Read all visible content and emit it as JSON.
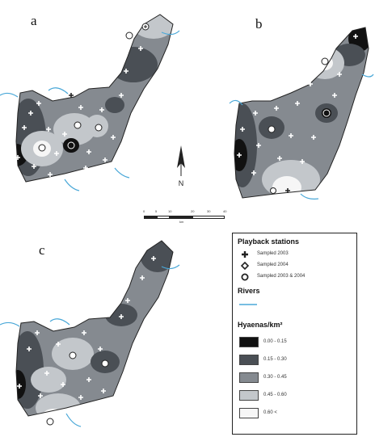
{
  "panels": [
    {
      "letter": "a"
    },
    {
      "letter": "b"
    },
    {
      "letter": "c"
    }
  ],
  "legend": {
    "stations_title": "Playback stations",
    "stations": [
      {
        "symbol": "plus",
        "label": "Sampled 2003"
      },
      {
        "symbol": "diamond",
        "label": "Sampled 2004"
      },
      {
        "symbol": "circle",
        "label": "Sampled 2003 & 2004"
      }
    ],
    "rivers_title": "Rivers",
    "density_title": "Hyaenas/km²",
    "classes": [
      {
        "label": "0.00 - 0.15",
        "color": "#111111"
      },
      {
        "label": "0.15 - 0.30",
        "color": "#4a4f55"
      },
      {
        "label": "0.30 - 0.45",
        "color": "#858a90"
      },
      {
        "label": "0.45 - 0.60",
        "color": "#c3c7cb"
      },
      {
        "label": "0.60 <",
        "color": "#f6f6f6"
      }
    ]
  },
  "scale": {
    "ticks": [
      "0",
      "5",
      "10",
      "20",
      "30",
      "40"
    ],
    "unit": "km"
  },
  "north": {
    "label": "N"
  },
  "colors": {
    "river": "#4aa8d8",
    "border": "#222222"
  }
}
